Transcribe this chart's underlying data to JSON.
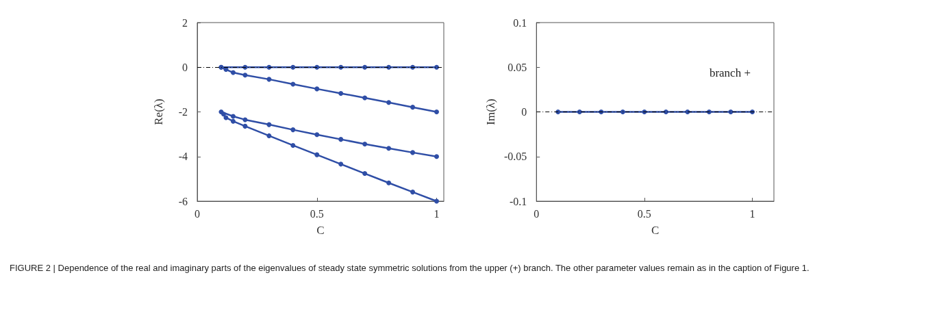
{
  "chart_data": [
    {
      "type": "line",
      "xlabel": "C",
      "ylabel": "Re(λ)",
      "xlim": [
        0,
        1.03
      ],
      "xticks": [
        0,
        0.5,
        1
      ],
      "ylim": [
        -6,
        2
      ],
      "yticks": [
        -6,
        -4,
        -2,
        0,
        2
      ],
      "marker": "circle",
      "line_style": "solid",
      "series": [
        {
          "color": "#2f4ea6",
          "x": [
            0.1,
            0.2,
            0.3,
            0.4,
            0.5,
            0.6,
            0.7,
            0.8,
            0.9,
            1
          ],
          "values": [
            0,
            0,
            0,
            0,
            0,
            0,
            0,
            0,
            0,
            0
          ]
        },
        {
          "color": "#2f4ea6",
          "x": [
            0.1,
            0.12,
            0.15,
            0.2,
            0.3,
            0.4,
            0.5,
            0.6,
            0.7,
            0.8,
            0.9,
            1
          ],
          "values": [
            0,
            -0.1,
            -0.24,
            -0.35,
            -0.54,
            -0.76,
            -0.97,
            -1.17,
            -1.37,
            -1.58,
            -1.79,
            -2
          ]
        },
        {
          "color": "#2f4ea6",
          "x": [
            0.1,
            0.15,
            0.2,
            0.3,
            0.4,
            0.5,
            0.6,
            0.7,
            0.8,
            0.9,
            1
          ],
          "values": [
            -2,
            -2.2,
            -2.35,
            -2.57,
            -2.8,
            -3.02,
            -3.23,
            -3.44,
            -3.63,
            -3.82,
            -4
          ]
        },
        {
          "color": "#2f4ea6",
          "x": [
            0.11,
            0.12,
            0.15,
            0.2,
            0.3,
            0.4,
            0.5,
            0.6,
            0.7,
            0.8,
            0.9,
            1
          ],
          "values": [
            -2.1,
            -2.26,
            -2.42,
            -2.64,
            -3.07,
            -3.5,
            -3.92,
            -4.34,
            -4.76,
            -5.18,
            -5.59,
            -6
          ]
        }
      ],
      "ref_lines": [
        {
          "axis": "y",
          "value": 0,
          "color": "#000000",
          "line_style": "dashed"
        }
      ],
      "annotations": [
        "FIGURE 2 | Dependence of the real and imaginary parts of the eigenvalues of steady state symmetric solutions from the upper (+) branch. The other parameter values remain as in the caption of Figure 1."
      ]
    },
    {
      "type": "line",
      "xlabel": "C",
      "ylabel": "Im(λ)",
      "xlim": [
        0,
        1.1
      ],
      "xticks": [
        0,
        0.5,
        1
      ],
      "ylim": [
        -0.1,
        0.1
      ],
      "yticks": [
        -0.1,
        -0.05,
        0,
        0.05,
        0.1
      ],
      "marker": "circle",
      "line_style": "solid",
      "series": [
        {
          "color": "#2f4ea6",
          "x": [
            0.1,
            0.2,
            0.3,
            0.4,
            0.5,
            0.6,
            0.7,
            0.8,
            0.9,
            1
          ],
          "values": [
            0,
            0,
            0,
            0,
            0,
            0,
            0,
            0,
            0,
            0
          ]
        }
      ],
      "ref_lines": [
        {
          "axis": "y",
          "value": 0,
          "color": "#000000",
          "line_style": "dashed"
        }
      ],
      "annotations": [
        "branch +"
      ]
    }
  ]
}
